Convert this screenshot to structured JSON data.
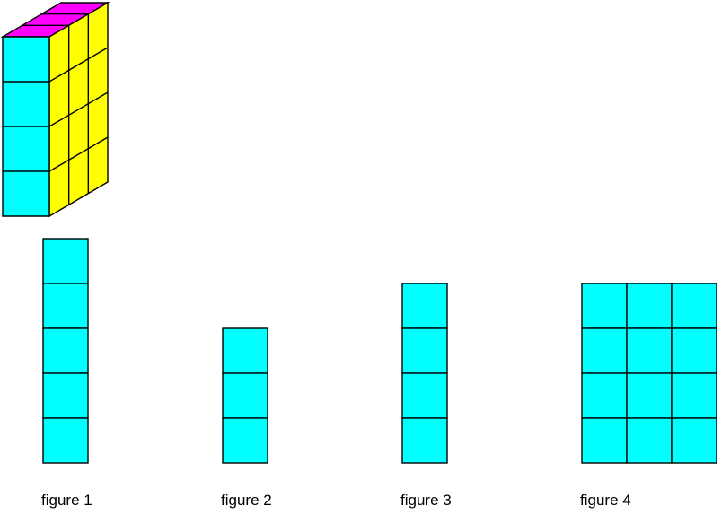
{
  "background": "#ffffff",
  "palette": {
    "outline": "#000000",
    "label_color": "#000000",
    "square_fill": "#00ffff"
  },
  "solid3d": {
    "name": "cuboid of unit cubes",
    "width_cubes": 1,
    "depth_cubes": 3,
    "height_cubes": 4,
    "front_color": "#00ffff",
    "side_color": "#ffff00",
    "top_color": "#ff00ff"
  },
  "figures": [
    {
      "label": "figure 1",
      "cols": 1,
      "rows": 5,
      "squares": 5,
      "color": "#00ffff"
    },
    {
      "label": "figure 2",
      "cols": 1,
      "rows": 3,
      "squares": 3,
      "color": "#00ffff"
    },
    {
      "label": "figure 3",
      "cols": 1,
      "rows": 4,
      "squares": 4,
      "color": "#00ffff"
    },
    {
      "label": "figure 4",
      "cols": 3,
      "rows": 4,
      "squares": 12,
      "color": "#00ffff"
    }
  ]
}
